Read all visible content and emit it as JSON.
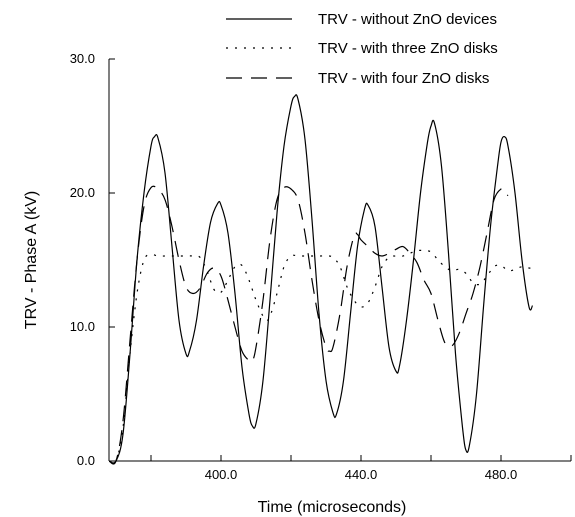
{
  "chart_data": {
    "type": "line",
    "title": "",
    "xlabel": "Time (microseconds)",
    "ylabel": "TRV - Phase A (kV)",
    "xlim": [
      368,
      500
    ],
    "ylim": [
      0,
      30
    ],
    "x_ticks": [
      {
        "value": 400,
        "label": "400.0"
      },
      {
        "value": 440,
        "label": "440.0"
      },
      {
        "value": 480,
        "label": "480.0"
      }
    ],
    "y_ticks": [
      {
        "value": 0,
        "label": "0.0"
      },
      {
        "value": 10,
        "label": "10.0"
      },
      {
        "value": 20,
        "label": "20.0"
      },
      {
        "value": 30,
        "label": "30.0"
      }
    ],
    "minor_x_ticks": [
      380,
      420,
      460,
      500
    ],
    "grid": false,
    "legend_position": "top-right",
    "series": [
      {
        "name": "TRV - without ZnO devices",
        "style": "solid",
        "color": "#000000",
        "points": [
          [
            368,
            0
          ],
          [
            370,
            0
          ],
          [
            372,
            2
          ],
          [
            374,
            8
          ],
          [
            376,
            15
          ],
          [
            378,
            20
          ],
          [
            380,
            23.5
          ],
          [
            381,
            24.2
          ],
          [
            382,
            24.1
          ],
          [
            384,
            21.5
          ],
          [
            386,
            16
          ],
          [
            388,
            10.5
          ],
          [
            390,
            8
          ],
          [
            391,
            8.2
          ],
          [
            393,
            10.5
          ],
          [
            395,
            14.5
          ],
          [
            397,
            17.8
          ],
          [
            399,
            19.2
          ],
          [
            400,
            19.1
          ],
          [
            402,
            17
          ],
          [
            404,
            12.5
          ],
          [
            406,
            7
          ],
          [
            408,
            3.5
          ],
          [
            409,
            2.6
          ],
          [
            410,
            2.8
          ],
          [
            412,
            6
          ],
          [
            414,
            12
          ],
          [
            416,
            18.5
          ],
          [
            418,
            23.5
          ],
          [
            420,
            26.5
          ],
          [
            421,
            27.2
          ],
          [
            422,
            27
          ],
          [
            424,
            24
          ],
          [
            426,
            18
          ],
          [
            428,
            11
          ],
          [
            430,
            6
          ],
          [
            432,
            3.6
          ],
          [
            433,
            3.5
          ],
          [
            435,
            6
          ],
          [
            437,
            11
          ],
          [
            439,
            16
          ],
          [
            441,
            18.8
          ],
          [
            442,
            19.1
          ],
          [
            444,
            17.5
          ],
          [
            446,
            13
          ],
          [
            448,
            8.5
          ],
          [
            450,
            6.7
          ],
          [
            451,
            7.1
          ],
          [
            453,
            10.5
          ],
          [
            455,
            15
          ],
          [
            457,
            20
          ],
          [
            459,
            23.8
          ],
          [
            460,
            25
          ],
          [
            461,
            25.2
          ],
          [
            463,
            22
          ],
          [
            465,
            15.5
          ],
          [
            467,
            8
          ],
          [
            469,
            2.5
          ],
          [
            470,
            0.8
          ],
          [
            471,
            1.2
          ],
          [
            473,
            5
          ],
          [
            475,
            11.5
          ],
          [
            477,
            17.5
          ],
          [
            479,
            22
          ],
          [
            480,
            23.8
          ],
          [
            481,
            24.2
          ],
          [
            482,
            23.5
          ],
          [
            484,
            20
          ],
          [
            486,
            15
          ],
          [
            488,
            11.5
          ],
          [
            489,
            11.6
          ]
        ]
      },
      {
        "name": "TRV - with three ZnO disks",
        "style": "dotted",
        "color": "#000000",
        "points": [
          [
            368,
            0
          ],
          [
            370,
            0
          ],
          [
            372,
            2.5
          ],
          [
            374,
            8
          ],
          [
            376,
            12.5
          ],
          [
            378,
            15
          ],
          [
            380,
            15.4
          ],
          [
            382,
            15.3
          ],
          [
            384,
            15.3
          ],
          [
            386,
            15.3
          ],
          [
            388,
            15.3
          ],
          [
            390,
            15.3
          ],
          [
            392,
            15.3
          ],
          [
            394,
            15.2
          ],
          [
            396,
            14.2
          ],
          [
            398,
            12.8
          ],
          [
            400,
            12.6
          ],
          [
            402,
            13.5
          ],
          [
            404,
            14.5
          ],
          [
            406,
            14.6
          ],
          [
            408,
            13.5
          ],
          [
            410,
            12
          ],
          [
            412,
            10.8
          ],
          [
            413,
            10.5
          ],
          [
            414,
            10.8
          ],
          [
            416,
            12.5
          ],
          [
            418,
            14.5
          ],
          [
            420,
            15.3
          ],
          [
            422,
            15.3
          ],
          [
            424,
            15.3
          ],
          [
            426,
            15.3
          ],
          [
            428,
            15.3
          ],
          [
            430,
            15.3
          ],
          [
            432,
            15.2
          ],
          [
            434,
            14.5
          ],
          [
            436,
            13
          ],
          [
            438,
            12
          ],
          [
            440,
            11.5
          ],
          [
            442,
            11.8
          ],
          [
            444,
            13
          ],
          [
            446,
            14.5
          ],
          [
            448,
            15.2
          ],
          [
            450,
            15.3
          ],
          [
            452,
            15.3
          ],
          [
            454,
            15.5
          ],
          [
            456,
            15.7
          ],
          [
            458,
            15.7
          ],
          [
            460,
            15.6
          ],
          [
            462,
            15
          ],
          [
            464,
            14.5
          ],
          [
            466,
            14.2
          ],
          [
            468,
            14.3
          ],
          [
            470,
            14
          ],
          [
            472,
            13.3
          ],
          [
            474,
            13.2
          ],
          [
            476,
            13.8
          ],
          [
            478,
            14.5
          ],
          [
            480,
            14.6
          ],
          [
            482,
            14.2
          ],
          [
            484,
            14.3
          ],
          [
            486,
            14.5
          ],
          [
            488,
            14.4
          ],
          [
            489,
            14.4
          ]
        ]
      },
      {
        "name": "TRV - with four ZnO disks",
        "style": "dashed",
        "color": "#000000",
        "points": [
          [
            368,
            0
          ],
          [
            370,
            0
          ],
          [
            372,
            3
          ],
          [
            374,
            9
          ],
          [
            376,
            15
          ],
          [
            378,
            19
          ],
          [
            380,
            20.4
          ],
          [
            382,
            20.3
          ],
          [
            384,
            19.5
          ],
          [
            386,
            17.5
          ],
          [
            388,
            15
          ],
          [
            390,
            13
          ],
          [
            392,
            12.5
          ],
          [
            394,
            12.9
          ],
          [
            396,
            14
          ],
          [
            398,
            14.4
          ],
          [
            400,
            13.8
          ],
          [
            402,
            12
          ],
          [
            404,
            10
          ],
          [
            406,
            8.2
          ],
          [
            408,
            7.5
          ],
          [
            409,
            7.5
          ],
          [
            410,
            8.5
          ],
          [
            412,
            12
          ],
          [
            414,
            16.5
          ],
          [
            416,
            19.5
          ],
          [
            418,
            20.4
          ],
          [
            420,
            20.3
          ],
          [
            422,
            19.5
          ],
          [
            424,
            17
          ],
          [
            426,
            13.5
          ],
          [
            428,
            10.5
          ],
          [
            430,
            8.5
          ],
          [
            431,
            8.2
          ],
          [
            432,
            8.5
          ],
          [
            434,
            11
          ],
          [
            436,
            14.5
          ],
          [
            438,
            16.8
          ],
          [
            439,
            16.9
          ],
          [
            440,
            16.5
          ],
          [
            442,
            16
          ],
          [
            444,
            15.5
          ],
          [
            446,
            15.3
          ],
          [
            448,
            15.5
          ],
          [
            450,
            15.8
          ],
          [
            452,
            16
          ],
          [
            454,
            15.5
          ],
          [
            456,
            14.8
          ],
          [
            458,
            13.5
          ],
          [
            460,
            12.5
          ],
          [
            462,
            10.5
          ],
          [
            464,
            8.8
          ],
          [
            466,
            8.6
          ],
          [
            468,
            9.5
          ],
          [
            470,
            11
          ],
          [
            472,
            12.5
          ],
          [
            474,
            14.5
          ],
          [
            476,
            17
          ],
          [
            478,
            19.5
          ],
          [
            480,
            20.3
          ],
          [
            481,
            20.1
          ],
          [
            482,
            19.8
          ]
        ]
      }
    ]
  }
}
